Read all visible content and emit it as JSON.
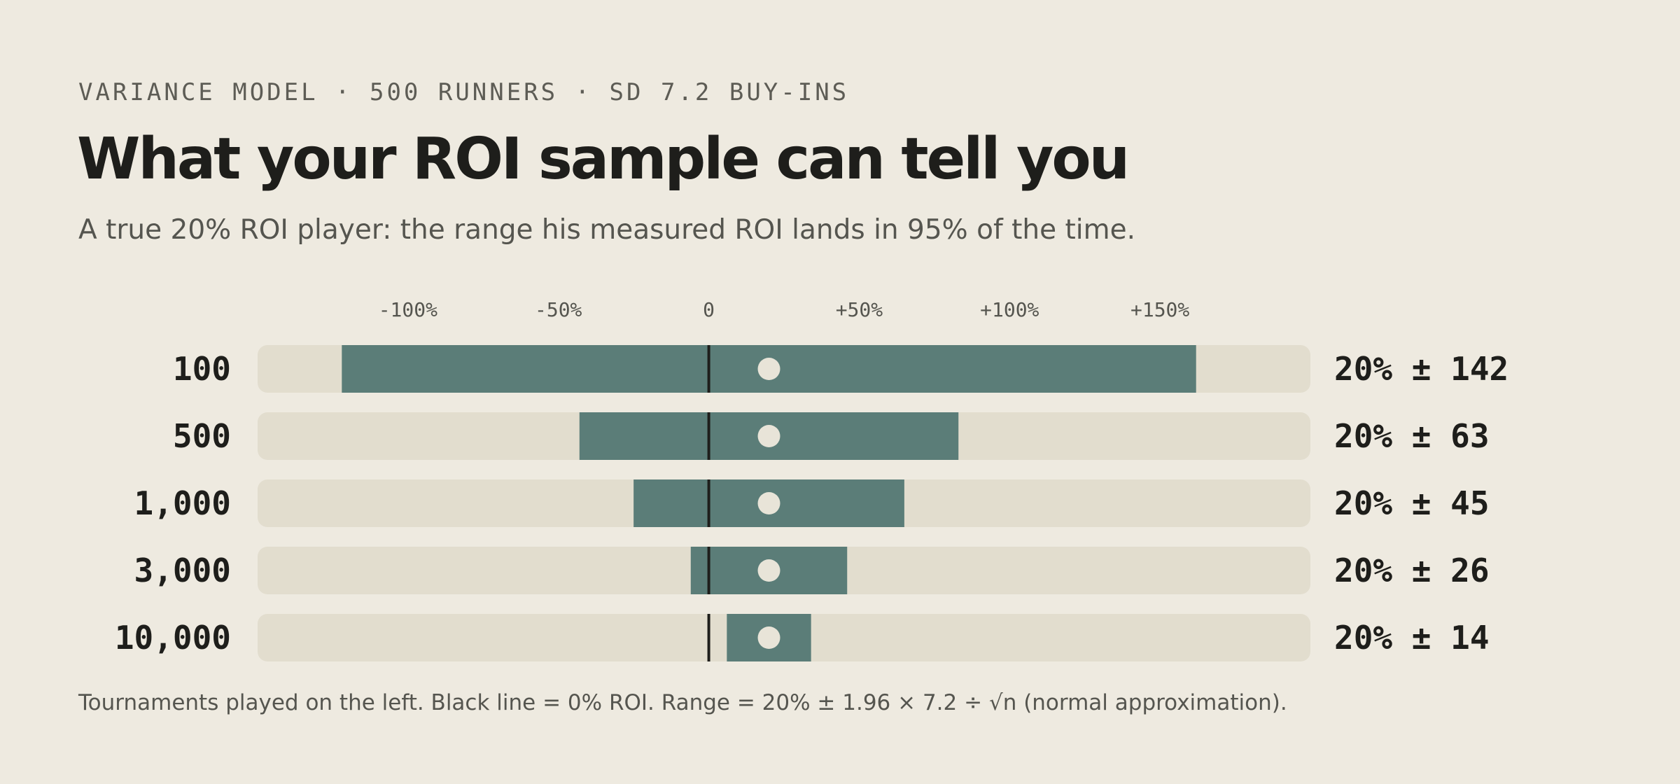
{
  "header": {
    "eyebrow": "VARIANCE MODEL · 500 RUNNERS · SD 7.2 BUY-INS",
    "title": "What your ROI sample can tell you",
    "subtitle": "A true 20% ROI player: the range his measured ROI lands in 95% of the time."
  },
  "footnote": "Tournaments played on the left. Black line = 0% ROI. Range = 20% ± 1.96 × 7.2 ÷ √n (normal approximation).",
  "colors": {
    "background": "#eeeae0",
    "track": "#e2ddce",
    "range": "#5b7d78",
    "marker": "#e8e4d8",
    "zero_line": "#1e1e1b"
  },
  "chart_data": {
    "type": "bar",
    "orientation": "horizontal",
    "style": "range bars with center marker",
    "x_tick_labels": [
      "-100%",
      "-50%",
      "0",
      "+50%",
      "+100%",
      "+150%"
    ],
    "x_ticks": [
      -100,
      -50,
      0,
      50,
      100,
      150
    ],
    "xlim": [
      -150,
      200
    ],
    "reference_line": 0,
    "center": 20,
    "rows": [
      {
        "label": "100",
        "low": -122,
        "high": 162,
        "ci_label": "20% ± 142"
      },
      {
        "label": "500",
        "low": -43,
        "high": 83,
        "ci_label": "20% ± 63"
      },
      {
        "label": "1,000",
        "low": -25,
        "high": 65,
        "ci_label": "20% ± 45"
      },
      {
        "label": "3,000",
        "low": -6,
        "high": 46,
        "ci_label": "20% ± 26"
      },
      {
        "label": "10,000",
        "low": 6,
        "high": 34,
        "ci_label": "20% ± 14"
      }
    ]
  }
}
